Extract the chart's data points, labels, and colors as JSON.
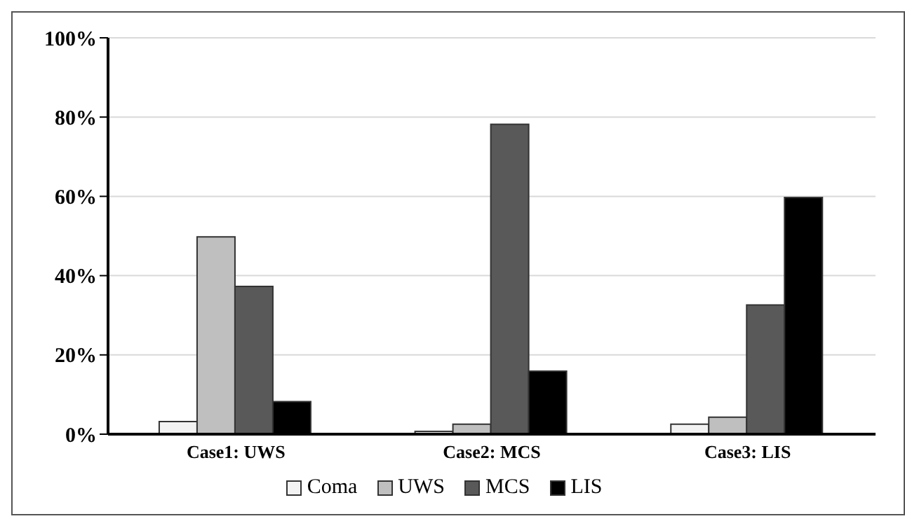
{
  "chart_data": {
    "type": "bar",
    "categories": [
      "Case1: UWS",
      "Case2: MCS",
      "Case3: LIS"
    ],
    "series": [
      {
        "name": "Coma",
        "color": "#f2f2f2",
        "values": [
          3.2,
          0.7,
          2.5
        ]
      },
      {
        "name": "UWS",
        "color": "#bfbfbf",
        "values": [
          49.8,
          2.5,
          4.3
        ]
      },
      {
        "name": "MCS",
        "color": "#595959",
        "values": [
          37.3,
          78.2,
          32.6
        ]
      },
      {
        "name": "LIS",
        "color": "#000000",
        "values": [
          8.2,
          15.9,
          59.7
        ]
      }
    ],
    "ylim": [
      0,
      100
    ],
    "yticks": [
      {
        "value": 0,
        "label": "0%"
      },
      {
        "value": 20,
        "label": "20%"
      },
      {
        "value": 40,
        "label": "40%"
      },
      {
        "value": 60,
        "label": "60%"
      },
      {
        "value": 80,
        "label": "80%"
      },
      {
        "value": 100,
        "label": "100%"
      }
    ],
    "grid": "y",
    "legend": "bottom"
  }
}
